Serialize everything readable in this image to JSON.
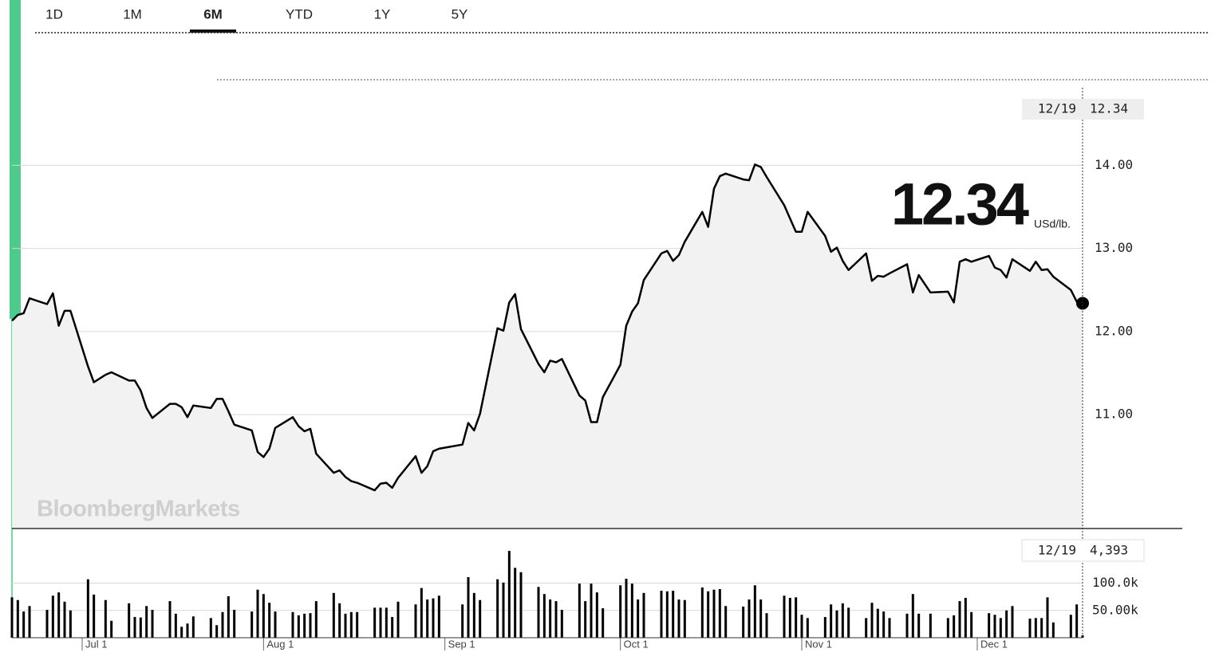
{
  "tabs": [
    "1D",
    "1M",
    "6M",
    "YTD",
    "1Y",
    "5Y"
  ],
  "active_tab": "6M",
  "chart_data": [
    {
      "type": "line",
      "watermark": "BloombergMarkets",
      "unit": "USd/lb.",
      "cursor_date": "12/19",
      "x": [
        "Jun 19",
        "Jun 20",
        "Jun 21",
        "Jun 22",
        "Jun 25",
        "Jun 26",
        "Jun 27",
        "Jun 28",
        "Jun 29",
        "Jul 2",
        "Jul 3",
        "Jul 5",
        "Jul 6",
        "Jul 9",
        "Jul 10",
        "Jul 11",
        "Jul 12",
        "Jul 13",
        "Jul 16",
        "Jul 17",
        "Jul 18",
        "Jul 19",
        "Jul 20",
        "Jul 23",
        "Jul 24",
        "Jul 25",
        "Jul 26",
        "Jul 27",
        "Jul 30",
        "Jul 31",
        "Aug 1",
        "Aug 2",
        "Aug 3",
        "Aug 6",
        "Aug 7",
        "Aug 8",
        "Aug 9",
        "Aug 10",
        "Aug 13",
        "Aug 14",
        "Aug 15",
        "Aug 16",
        "Aug 17",
        "Aug 20",
        "Aug 21",
        "Aug 22",
        "Aug 23",
        "Aug 24",
        "Aug 27",
        "Aug 28",
        "Aug 29",
        "Aug 30",
        "Aug 31",
        "Sep 4",
        "Sep 5",
        "Sep 6",
        "Sep 7",
        "Sep 10",
        "Sep 11",
        "Sep 12",
        "Sep 13",
        "Sep 14",
        "Sep 17",
        "Sep 18",
        "Sep 19",
        "Sep 20",
        "Sep 21",
        "Sep 24",
        "Sep 25",
        "Sep 26",
        "Sep 27",
        "Sep 28",
        "Oct 1",
        "Oct 2",
        "Oct 3",
        "Oct 4",
        "Oct 5",
        "Oct 8",
        "Oct 9",
        "Oct 10",
        "Oct 11",
        "Oct 12",
        "Oct 15",
        "Oct 16",
        "Oct 17",
        "Oct 18",
        "Oct 19",
        "Oct 22",
        "Oct 23",
        "Oct 24",
        "Oct 25",
        "Oct 26",
        "Oct 29",
        "Oct 30",
        "Oct 31",
        "Nov 1",
        "Nov 2",
        "Nov 5",
        "Nov 6",
        "Nov 7",
        "Nov 8",
        "Nov 9",
        "Nov 12",
        "Nov 13",
        "Nov 14",
        "Nov 15",
        "Nov 16",
        "Nov 19",
        "Nov 20",
        "Nov 21",
        "Nov 23",
        "Nov 26",
        "Nov 27",
        "Nov 28",
        "Nov 29",
        "Nov 30",
        "Dec 3",
        "Dec 4",
        "Dec 5",
        "Dec 6",
        "Dec 7",
        "Dec 10",
        "Dec 11",
        "Dec 12",
        "Dec 13",
        "Dec 14",
        "Dec 17",
        "Dec 18",
        "Dec 19"
      ],
      "xlim": [
        "Jun 19",
        "Dec 19"
      ],
      "series": [
        {
          "color": "#000000",
          "fill": "#f2f2f2",
          "values": [
            12.13,
            12.2,
            12.22,
            12.4,
            12.33,
            12.46,
            12.07,
            12.25,
            12.25,
            11.58,
            11.39,
            11.48,
            11.51,
            11.41,
            11.41,
            11.29,
            11.08,
            10.96,
            11.13,
            11.13,
            11.09,
            10.97,
            11.11,
            11.08,
            11.19,
            11.19,
            11.04,
            10.88,
            10.81,
            10.55,
            10.49,
            10.59,
            10.84,
            10.97,
            10.86,
            10.8,
            10.83,
            10.53,
            10.3,
            10.33,
            10.25,
            10.2,
            10.18,
            10.09,
            10.17,
            10.18,
            10.12,
            10.24,
            10.5,
            10.3,
            10.38,
            10.56,
            10.59,
            10.64,
            10.9,
            10.81,
            11.01,
            12.04,
            12.01,
            12.35,
            12.45,
            12.03,
            11.61,
            11.51,
            11.65,
            11.63,
            11.67,
            11.23,
            11.17,
            10.91,
            10.91,
            11.21,
            11.6,
            12.07,
            12.24,
            12.34,
            12.62,
            12.94,
            12.97,
            12.85,
            12.92,
            13.08,
            13.44,
            13.26,
            13.72,
            13.87,
            13.9,
            13.83,
            13.82,
            14.01,
            13.98,
            13.86,
            13.52,
            13.36,
            13.2,
            13.2,
            13.44,
            13.15,
            12.96,
            13.01,
            12.85,
            12.74,
            12.94,
            12.61,
            12.67,
            12.66,
            12.7,
            12.81,
            12.47,
            12.68,
            12.47,
            12.48,
            12.35,
            12.84,
            12.87,
            12.84,
            12.91,
            12.77,
            12.74,
            12.65,
            12.87,
            12.73,
            12.84,
            12.74,
            12.75,
            12.66,
            12.5,
            12.36,
            12.34
          ]
        }
      ],
      "ylim": [
        9.63,
        15.03
      ],
      "yticks": [
        {
          "value": 11,
          "label": "11.00"
        },
        {
          "value": 12,
          "label": "12.00"
        },
        {
          "value": 13,
          "label": "13.00"
        },
        {
          "value": 14,
          "label": "14.00"
        }
      ],
      "grid": true
    },
    {
      "type": "bar",
      "cursor_date": "12/19",
      "x": [
        "Jun 19",
        "Jun 20",
        "Jun 21",
        "Jun 22",
        "Jun 25",
        "Jun 26",
        "Jun 27",
        "Jun 28",
        "Jun 29",
        "Jul 2",
        "Jul 3",
        "Jul 5",
        "Jul 6",
        "Jul 9",
        "Jul 10",
        "Jul 11",
        "Jul 12",
        "Jul 13",
        "Jul 16",
        "Jul 17",
        "Jul 18",
        "Jul 19",
        "Jul 20",
        "Jul 23",
        "Jul 24",
        "Jul 25",
        "Jul 26",
        "Jul 27",
        "Jul 30",
        "Jul 31",
        "Aug 1",
        "Aug 2",
        "Aug 3",
        "Aug 6",
        "Aug 7",
        "Aug 8",
        "Aug 9",
        "Aug 10",
        "Aug 13",
        "Aug 14",
        "Aug 15",
        "Aug 16",
        "Aug 17",
        "Aug 20",
        "Aug 21",
        "Aug 22",
        "Aug 23",
        "Aug 24",
        "Aug 27",
        "Aug 28",
        "Aug 29",
        "Aug 30",
        "Aug 31",
        "Sep 4",
        "Sep 5",
        "Sep 6",
        "Sep 7",
        "Sep 10",
        "Sep 11",
        "Sep 12",
        "Sep 13",
        "Sep 14",
        "Sep 17",
        "Sep 18",
        "Sep 19",
        "Sep 20",
        "Sep 21",
        "Sep 24",
        "Sep 25",
        "Sep 26",
        "Sep 27",
        "Sep 28",
        "Oct 1",
        "Oct 2",
        "Oct 3",
        "Oct 4",
        "Oct 5",
        "Oct 8",
        "Oct 9",
        "Oct 10",
        "Oct 11",
        "Oct 12",
        "Oct 15",
        "Oct 16",
        "Oct 17",
        "Oct 18",
        "Oct 19",
        "Oct 22",
        "Oct 23",
        "Oct 24",
        "Oct 25",
        "Oct 26",
        "Oct 29",
        "Oct 30",
        "Oct 31",
        "Nov 1",
        "Nov 2",
        "Nov 5",
        "Nov 6",
        "Nov 7",
        "Nov 8",
        "Nov 9",
        "Nov 12",
        "Nov 13",
        "Nov 14",
        "Nov 15",
        "Nov 16",
        "Nov 19",
        "Nov 20",
        "Nov 21",
        "Nov 23",
        "Nov 26",
        "Nov 27",
        "Nov 28",
        "Nov 29",
        "Nov 30",
        "Dec 3",
        "Dec 4",
        "Dec 5",
        "Dec 6",
        "Dec 7",
        "Dec 10",
        "Dec 11",
        "Dec 12",
        "Dec 13",
        "Dec 14",
        "Dec 17",
        "Dec 18",
        "Dec 19"
      ],
      "xlim": [
        "Jun 19",
        "Dec 19"
      ],
      "xticks": [
        "Jul 1",
        "Aug 1",
        "Sep 1",
        "Oct 1",
        "Nov 1",
        "Dec 1"
      ],
      "color": "#000000",
      "values": [
        74000,
        69000,
        48000,
        58000,
        51000,
        77000,
        83000,
        66000,
        50000,
        107000,
        79000,
        69000,
        31000,
        63000,
        38000,
        37000,
        58000,
        51000,
        67000,
        44000,
        20000,
        26000,
        39000,
        36000,
        23000,
        47000,
        76000,
        51000,
        48000,
        88000,
        80000,
        64000,
        48000,
        47000,
        41000,
        44000,
        45000,
        67000,
        82000,
        63000,
        44000,
        47000,
        47000,
        55000,
        55000,
        55000,
        38000,
        66000,
        61000,
        91000,
        70000,
        72000,
        77000,
        61000,
        111000,
        82000,
        69000,
        107000,
        101000,
        159000,
        128000,
        120000,
        93000,
        80000,
        70000,
        67000,
        51000,
        99000,
        67000,
        99000,
        83000,
        54000,
        96000,
        108000,
        99000,
        70000,
        82000,
        86000,
        85000,
        86000,
        70000,
        69000,
        92000,
        85000,
        88000,
        89000,
        58000,
        57000,
        70000,
        96000,
        70000,
        45000,
        77000,
        73000,
        74000,
        42000,
        36000,
        38000,
        61000,
        50000,
        63000,
        55000,
        36000,
        64000,
        53000,
        48000,
        36000,
        44000,
        80000,
        44000,
        44000,
        36000,
        41000,
        67000,
        73000,
        47000,
        45000,
        42000,
        36000,
        50000,
        58000,
        35000,
        36000,
        36000,
        74000,
        28000,
        42000,
        61000,
        4393
      ],
      "value_labels": [
        null,
        null,
        null,
        null,
        null,
        null,
        null,
        null,
        null,
        null,
        null,
        null,
        null,
        null,
        null,
        null,
        null,
        null,
        null,
        null,
        null,
        null,
        null,
        null,
        null,
        null,
        null,
        null,
        null,
        null,
        null,
        null,
        null,
        null,
        null,
        null,
        null,
        null,
        null,
        null,
        null,
        null,
        null,
        null,
        null,
        null,
        null,
        null,
        null,
        null,
        null,
        null,
        null,
        null,
        null,
        null,
        null,
        null,
        null,
        null,
        null,
        null,
        null,
        null,
        null,
        null,
        null,
        null,
        null,
        null,
        null,
        null,
        null,
        null,
        null,
        null,
        null,
        null,
        null,
        null,
        null,
        null,
        null,
        null,
        null,
        null,
        null,
        null,
        null,
        null,
        null,
        null,
        null,
        null,
        null,
        null,
        null,
        null,
        null,
        null,
        null,
        null,
        null,
        null,
        null,
        null,
        null,
        null,
        null,
        null,
        null,
        null,
        null,
        null,
        null,
        null,
        null,
        null,
        null,
        null,
        null,
        null,
        null,
        null,
        null,
        null,
        null,
        null,
        "4,393"
      ],
      "ylim": [
        0,
        200000
      ],
      "yticks": [
        {
          "value": 50000,
          "label": "50.00k"
        },
        {
          "value": 100000,
          "label": "100.0k"
        }
      ],
      "grid": true
    }
  ]
}
